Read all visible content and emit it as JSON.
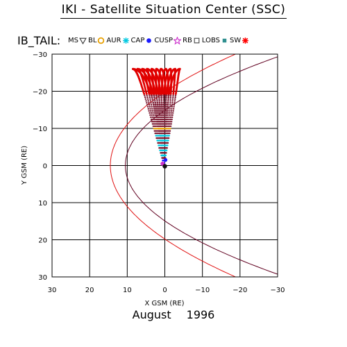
{
  "header": {
    "title": "IKI - Satellite Situation Center (SSC)",
    "orbit_label": "IB_TAIL:"
  },
  "legend": [
    {
      "label": "MS",
      "icon": "triangle-down-icon",
      "color": "#333333"
    },
    {
      "label": "BL",
      "icon": "circle-icon",
      "color": "#e8a000"
    },
    {
      "label": "AUR",
      "icon": "asterisk-icon",
      "color": "#00c8e0"
    },
    {
      "label": "CAP",
      "icon": "dot-icon",
      "color": "#1a1aff"
    },
    {
      "label": "CUSP",
      "icon": "star-icon",
      "color": "#cc33cc"
    },
    {
      "label": "RB",
      "icon": "square-icon",
      "color": "#444444"
    },
    {
      "label": "LOBS",
      "icon": "square-filled-icon",
      "color": "#2f8f8f"
    },
    {
      "label": "SW",
      "icon": "burst-icon",
      "color": "#ff0000"
    }
  ],
  "footer": {
    "month": "August",
    "year": "1996"
  },
  "chart_data": {
    "type": "scatter",
    "xlabel": "X GSM (RE)",
    "ylabel": "Y GSM (RE)",
    "xlim": [
      30,
      -30
    ],
    "ylim": [
      -30,
      30
    ],
    "xticks": [
      30,
      20,
      10,
      0,
      -10,
      -20,
      -30
    ],
    "yticks": [
      -30,
      -20,
      -10,
      0,
      10,
      20,
      30
    ],
    "grid": true,
    "boundaries": [
      {
        "name": "bow-shock",
        "color": "#e01010",
        "x0": 14.5,
        "yscale": 5.2
      },
      {
        "name": "magnetopause",
        "color": "#600020",
        "x0": 10.5,
        "yscale": 4.6
      }
    ],
    "trajectory": {
      "apogee_y": -26,
      "apogee_x_span": [
        8.5,
        -4
      ],
      "perigee": [
        0.2,
        0.0
      ],
      "orbits": 11
    },
    "region_colors": {
      "SW": "#e00000",
      "MS": "#7a1830",
      "BL": "#e8a000",
      "AUR": "#00c8e0",
      "CAP": "#1a1aff",
      "CUSP": "#cc33cc",
      "LOBS": "#2f8f8f"
    }
  }
}
